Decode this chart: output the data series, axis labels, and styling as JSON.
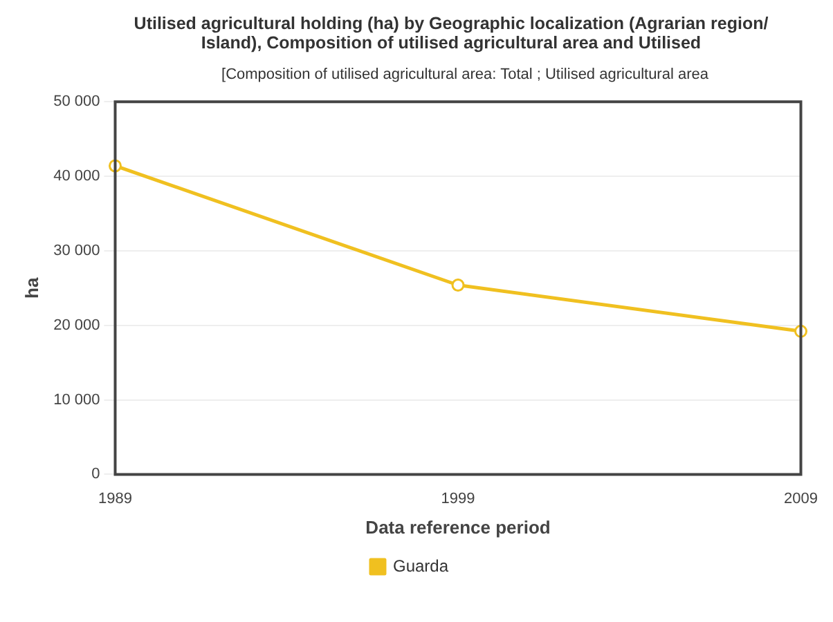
{
  "chart_data": {
    "type": "line",
    "title": "Utilised agricultural holding (ha) by Geographic localization (Agrarian region/ Island), Composition of utilised agricultural area and Utilised",
    "subtitle": "[Composition of utilised agricultural area: Total ; Utilised agricultural area",
    "xlabel": "Data reference period",
    "ylabel": "ha",
    "categories": [
      "1989",
      "1999",
      "2009"
    ],
    "series": [
      {
        "name": "Guarda",
        "color": "#f0c020",
        "values": [
          41400,
          25400,
          19200
        ]
      }
    ],
    "ylim": [
      0,
      50000
    ],
    "yticks": [
      {
        "value": 0,
        "label": "0"
      },
      {
        "value": 10000,
        "label": "10 000"
      },
      {
        "value": 20000,
        "label": "20 000"
      },
      {
        "value": 30000,
        "label": "30 000"
      },
      {
        "value": 40000,
        "label": "40 000"
      },
      {
        "value": 50000,
        "label": "50 000"
      }
    ],
    "grid": "y",
    "legend": "bottom",
    "marker": "circle",
    "line_style": "solid"
  }
}
